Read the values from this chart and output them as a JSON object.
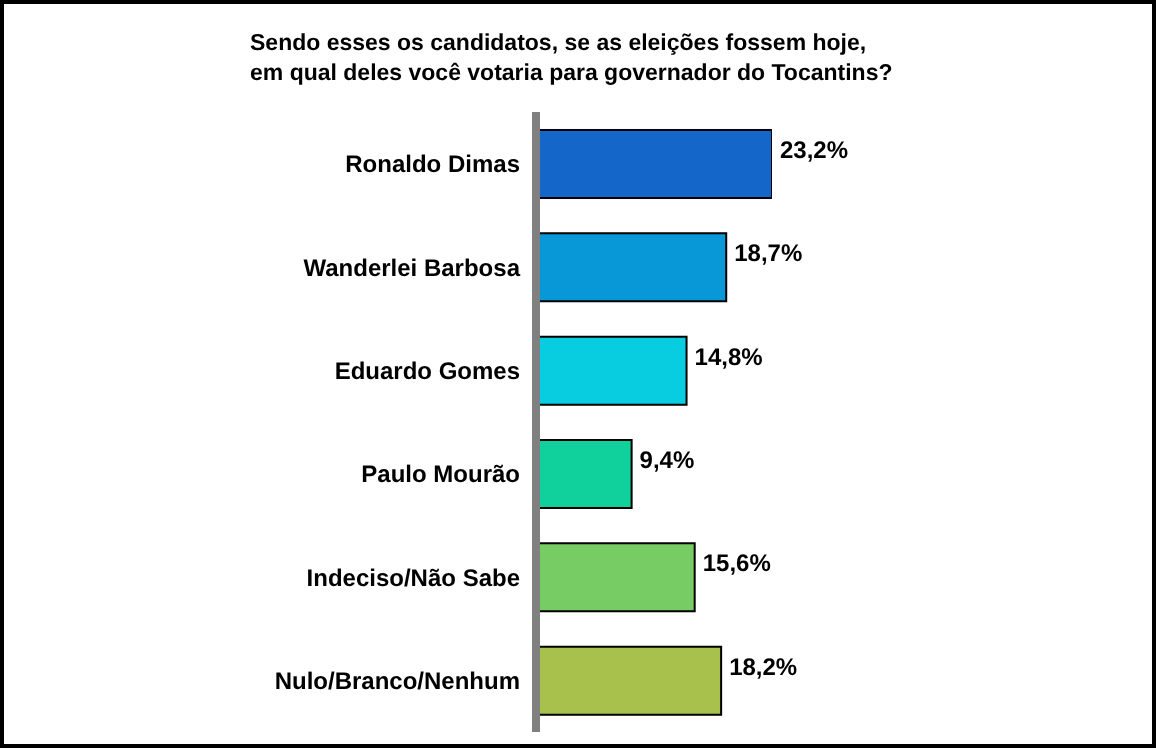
{
  "chart_data": {
    "type": "bar",
    "orientation": "horizontal",
    "title": "Sendo esses os candidatos, se as eleições fossem hoje,\nem qual deles você votaria para governador do Tocantins?",
    "categories": [
      "Ronaldo Dimas",
      "Wanderlei Barbosa",
      "Eduardo Gomes",
      "Paulo Mourão",
      "Indeciso/Não Sabe",
      "Nulo/Branco/Nenhum"
    ],
    "values": [
      23.2,
      18.7,
      14.8,
      9.4,
      15.6,
      18.2
    ],
    "value_labels": [
      "23,2%",
      "18,7%",
      "14,8%",
      "9,4%",
      "15,6%",
      "18,2%"
    ],
    "colors": [
      "#1466c8",
      "#0898d8",
      "#08cce0",
      "#10d09c",
      "#78cc64",
      "#a8c04c"
    ]
  }
}
